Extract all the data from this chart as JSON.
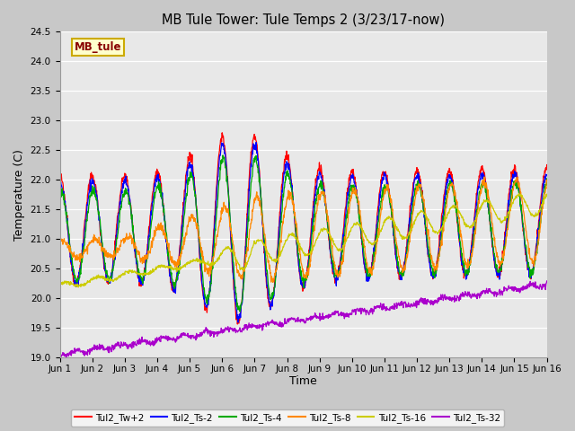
{
  "title": "MB Tule Tower: Tule Temps 2 (3/23/17-now)",
  "xlabel": "Time",
  "ylabel": "Temperature (C)",
  "ylim": [
    19.0,
    24.5
  ],
  "yticks": [
    19.0,
    19.5,
    20.0,
    20.5,
    21.0,
    21.5,
    22.0,
    22.5,
    23.0,
    23.5,
    24.0,
    24.5
  ],
  "legend_label": "MB_tule",
  "legend_bg": "#ffffcc",
  "legend_border": "#ccaa00",
  "series_colors": {
    "Tul2_Tw+2": "#ff0000",
    "Tul2_Ts-2": "#0000ff",
    "Tul2_Ts-4": "#00aa00",
    "Tul2_Ts-8": "#ff8800",
    "Tul2_Ts-16": "#cccc00",
    "Tul2_Ts-32": "#aa00cc"
  },
  "xtick_labels": [
    "Jun 1",
    "Jun 2",
    "Jun 3",
    "Jun 4",
    "Jun 5",
    "Jun 6",
    "Jun 7",
    "Jun 8",
    "Jun 9",
    "Jun 10",
    "Jun 11",
    "Jun 12",
    "Jun 13",
    "Jun 14",
    "Jun 15",
    "Jun 16"
  ],
  "xtick_positions": [
    1,
    2,
    3,
    4,
    5,
    6,
    7,
    8,
    9,
    10,
    11,
    12,
    13,
    14,
    15,
    16
  ]
}
